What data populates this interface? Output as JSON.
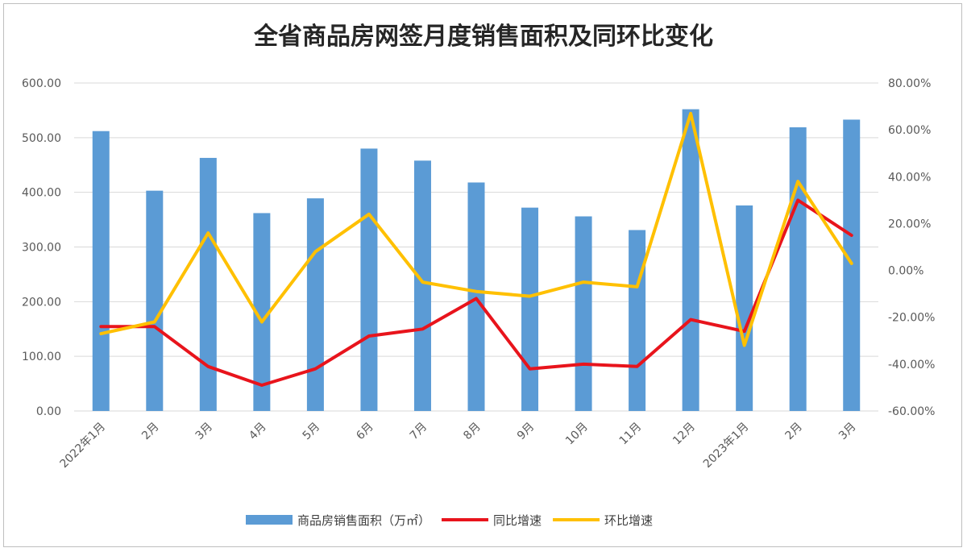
{
  "chart_data": {
    "type": "bar",
    "title": "全省商品房网签月度销售面积及同环比变化",
    "categories": [
      "2022年1月",
      "2月",
      "3月",
      "4月",
      "5月",
      "6月",
      "7月",
      "8月",
      "9月",
      "10月",
      "11月",
      "12月",
      "2023年1月",
      "2月",
      "3月"
    ],
    "series": [
      {
        "name": "商品房销售面积（万㎡）",
        "type": "bar",
        "axis": "left",
        "color": "#5B9BD5",
        "values": [
          512,
          403,
          463,
          362,
          389,
          480,
          458,
          418,
          372,
          356,
          331,
          552,
          376,
          519,
          533
        ]
      },
      {
        "name": "同比增速",
        "type": "line",
        "axis": "right",
        "color": "#E8141C",
        "values": [
          -24,
          -24,
          -41,
          -49,
          -42,
          -28,
          -25,
          -12,
          -42,
          -40,
          -41,
          -21,
          -26,
          30,
          15
        ]
      },
      {
        "name": "环比增速",
        "type": "line",
        "axis": "right",
        "color": "#FFC000",
        "values": [
          -27,
          -22,
          16,
          -22,
          8,
          24,
          -5,
          -9,
          -11,
          -5,
          -7,
          67,
          -32,
          38,
          3
        ]
      }
    ],
    "y_left": {
      "ylim": [
        0,
        600
      ],
      "ticks": [
        "0.00",
        "100.00",
        "200.00",
        "300.00",
        "400.00",
        "500.00",
        "600.00"
      ]
    },
    "y_right": {
      "ylim": [
        -60,
        80
      ],
      "ticks": [
        "-60.00%",
        "-40.00%",
        "-20.00%",
        "0.00%",
        "20.00%",
        "40.00%",
        "60.00%",
        "80.00%"
      ]
    },
    "grid": true,
    "legend_position": "bottom"
  }
}
